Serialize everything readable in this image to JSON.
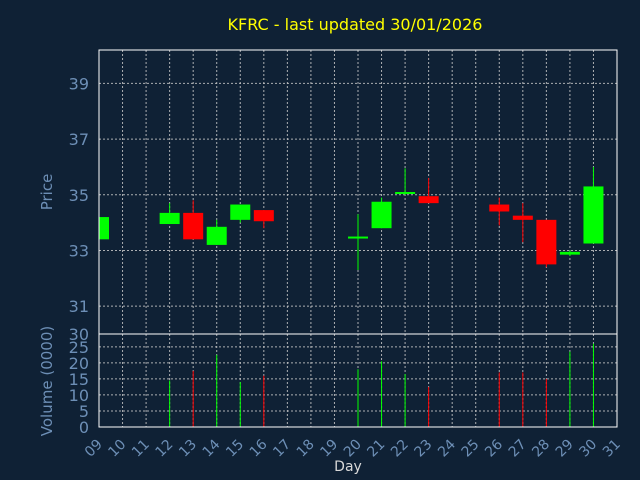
{
  "chart_data": {
    "type": "candlestick",
    "title": "KFRC - last updated 30/01/2026",
    "xlabel": "Day",
    "ylabel_price": "Price",
    "ylabel_volume": "Volume (0000)",
    "x_ticks": [
      "09",
      "10",
      "11",
      "12",
      "13",
      "14",
      "15",
      "16",
      "17",
      "18",
      "19",
      "20",
      "21",
      "22",
      "23",
      "24",
      "25",
      "26",
      "27",
      "28",
      "29",
      "30",
      "31"
    ],
    "price_ticks": [
      30,
      31,
      33,
      35,
      37,
      39
    ],
    "price_ylim": [
      30,
      40.2
    ],
    "volume_ticks": [
      0,
      5,
      10,
      15,
      20,
      25
    ],
    "volume_ylim": [
      0,
      29
    ],
    "grid": true,
    "colors": {
      "up": "#00ff00",
      "down": "#ff0000",
      "background": "#0f2135",
      "title": "#ffff00",
      "axis_text": "#6d8fb6"
    },
    "candles": [
      {
        "day": 9,
        "open": 33.4,
        "close": 34.2,
        "high": 34.2,
        "low": 33.4,
        "volume": 0
      },
      {
        "day": 12,
        "open": 33.95,
        "close": 34.35,
        "high": 34.7,
        "low": 33.95,
        "volume": 14.5
      },
      {
        "day": 13,
        "open": 34.35,
        "close": 33.4,
        "high": 34.8,
        "low": 33.4,
        "volume": 17.5
      },
      {
        "day": 14,
        "open": 33.2,
        "close": 33.85,
        "high": 34.1,
        "low": 33.2,
        "volume": 22.5
      },
      {
        "day": 15,
        "open": 34.1,
        "close": 34.65,
        "high": 34.65,
        "low": 34.0,
        "volume": 14
      },
      {
        "day": 16,
        "open": 34.45,
        "close": 34.05,
        "high": 34.45,
        "low": 33.8,
        "volume": 16
      },
      {
        "day": 20,
        "open": 33.45,
        "close": 33.5,
        "high": 34.3,
        "low": 32.3,
        "volume": 18
      },
      {
        "day": 21,
        "open": 33.8,
        "close": 34.75,
        "high": 34.9,
        "low": 33.8,
        "volume": 20.5
      },
      {
        "day": 22,
        "open": 35.05,
        "close": 35.1,
        "high": 35.95,
        "low": 35.0,
        "volume": 16.5
      },
      {
        "day": 23,
        "open": 34.95,
        "close": 34.7,
        "high": 35.6,
        "low": 34.7,
        "volume": 12.5
      },
      {
        "day": 26,
        "open": 34.65,
        "close": 34.4,
        "high": 34.9,
        "low": 33.9,
        "volume": 17
      },
      {
        "day": 27,
        "open": 34.25,
        "close": 34.1,
        "high": 34.7,
        "low": 33.3,
        "volume": 17
      },
      {
        "day": 28,
        "open": 34.1,
        "close": 32.5,
        "high": 34.1,
        "low": 32.4,
        "volume": 15
      },
      {
        "day": 29,
        "open": 32.85,
        "close": 32.95,
        "high": 33.0,
        "low": 32.8,
        "volume": 23.5
      },
      {
        "day": 30,
        "open": 33.25,
        "close": 35.3,
        "high": 36.0,
        "low": 33.25,
        "volume": 26
      }
    ]
  }
}
